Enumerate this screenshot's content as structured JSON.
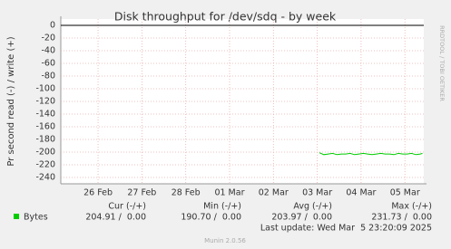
{
  "chart_data": {
    "type": "line",
    "title": "Disk throughput for /dev/sdq - by week",
    "ylabel": "Pr second read (-) / write (+)",
    "x": [
      5.05,
      5.15,
      5.25,
      5.35,
      5.45,
      5.55,
      5.65,
      5.75,
      5.85,
      5.95,
      6.05,
      6.15,
      6.25,
      6.35,
      6.45,
      6.55,
      6.65,
      6.75,
      6.85,
      6.95,
      7.05,
      7.15,
      7.25,
      7.35,
      7.4
    ],
    "series": [
      {
        "name": "Bytes",
        "color": "#00cc00",
        "values": [
          -201,
          -204,
          -203,
          -202,
          -204,
          -203,
          -203,
          -202,
          -204,
          -203,
          -202,
          -203,
          -204,
          -203,
          -202,
          -203,
          -203,
          -204,
          -202,
          -203,
          -203,
          -202,
          -204,
          -203,
          -202
        ]
      }
    ],
    "xlim": [
      -0.85,
      7.43
    ],
    "ylim": [
      -250,
      10
    ],
    "xticks": [
      {
        "value": 0,
        "label": "26 Feb"
      },
      {
        "value": 1,
        "label": "27 Feb"
      },
      {
        "value": 2,
        "label": "28 Feb"
      },
      {
        "value": 3,
        "label": "01 Mar"
      },
      {
        "value": 4,
        "label": "02 Mar"
      },
      {
        "value": 5,
        "label": "03 Mar"
      },
      {
        "value": 6,
        "label": "04 Mar"
      },
      {
        "value": 7,
        "label": "05 Mar"
      }
    ],
    "yticks": [
      0,
      -20,
      -40,
      -60,
      -80,
      -100,
      -120,
      -140,
      -160,
      -180,
      -200,
      -220,
      -240
    ],
    "grid": true
  },
  "legend_table": {
    "headers": [
      "Cur (-/+)",
      "Min (-/+)",
      "Avg (-/+)",
      "Max (-/+)"
    ],
    "row": [
      "204.91 /  0.00",
      "190.70 /  0.00",
      "203.97 /  0.00",
      "231.73 /  0.00"
    ]
  },
  "last_update": "Last update: Wed Mar  5 23:20:09 2025",
  "footer": "Munin 2.0.56",
  "watermark": "RRDTOOL / TOBI OETIKER"
}
